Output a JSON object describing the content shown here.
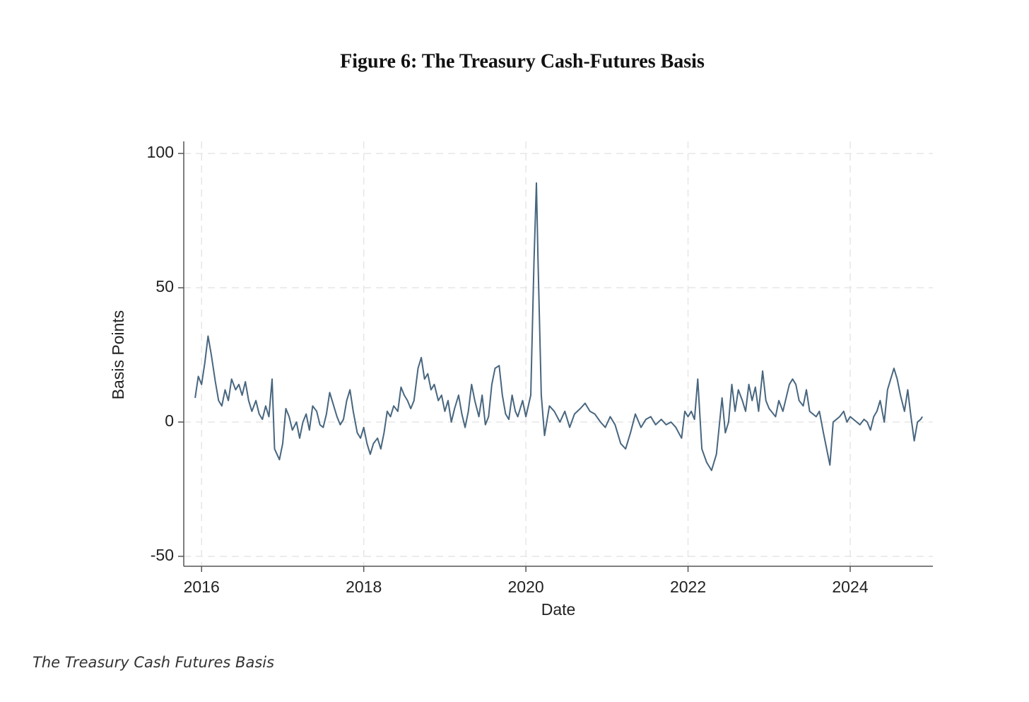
{
  "chart_data": {
    "type": "line",
    "title": "Figure 6: The Treasury Cash-Futures Basis",
    "xlabel": "Date",
    "ylabel": "Basis Points",
    "caption": "The Treasury Cash Futures Basis",
    "color": "#48667f",
    "grid": true,
    "xlim": [
      2015.78,
      2025.02
    ],
    "xticks": [
      2016,
      2018,
      2020,
      2022,
      2024
    ],
    "ylim": [
      -53.7,
      104.5
    ],
    "yticks": [
      -50,
      0,
      50,
      100
    ],
    "x": [
      2015.92,
      2015.96,
      2016.0,
      2016.04,
      2016.08,
      2016.12,
      2016.17,
      2016.21,
      2016.25,
      2016.29,
      2016.33,
      2016.37,
      2016.42,
      2016.46,
      2016.5,
      2016.54,
      2016.58,
      2016.62,
      2016.67,
      2016.71,
      2016.75,
      2016.79,
      2016.83,
      2016.87,
      2016.9,
      2016.96,
      2017.0,
      2017.04,
      2017.08,
      2017.12,
      2017.17,
      2017.21,
      2017.25,
      2017.29,
      2017.33,
      2017.37,
      2017.42,
      2017.46,
      2017.5,
      2017.54,
      2017.58,
      2017.62,
      2017.67,
      2017.71,
      2017.75,
      2017.79,
      2017.83,
      2017.87,
      2017.92,
      2017.96,
      2018.0,
      2018.04,
      2018.08,
      2018.12,
      2018.17,
      2018.21,
      2018.25,
      2018.29,
      2018.33,
      2018.37,
      2018.42,
      2018.46,
      2018.5,
      2018.54,
      2018.58,
      2018.62,
      2018.67,
      2018.71,
      2018.75,
      2018.79,
      2018.83,
      2018.87,
      2018.92,
      2018.96,
      2019.0,
      2019.04,
      2019.08,
      2019.12,
      2019.17,
      2019.21,
      2019.25,
      2019.29,
      2019.33,
      2019.37,
      2019.42,
      2019.46,
      2019.5,
      2019.54,
      2019.58,
      2019.62,
      2019.67,
      2019.71,
      2019.75,
      2019.79,
      2019.83,
      2019.87,
      2019.9,
      2019.96,
      2020.0,
      2020.06,
      2020.1,
      2020.13,
      2020.15,
      2020.19,
      2020.23,
      2020.29,
      2020.35,
      2020.42,
      2020.48,
      2020.54,
      2020.6,
      2020.67,
      2020.73,
      2020.79,
      2020.85,
      2020.92,
      2020.98,
      2021.04,
      2021.1,
      2021.17,
      2021.23,
      2021.29,
      2021.35,
      2021.42,
      2021.48,
      2021.54,
      2021.6,
      2021.67,
      2021.73,
      2021.79,
      2021.85,
      2021.92,
      2021.96,
      2022.0,
      2022.04,
      2022.08,
      2022.12,
      2022.17,
      2022.23,
      2022.29,
      2022.35,
      2022.42,
      2022.46,
      2022.5,
      2022.54,
      2022.58,
      2022.62,
      2022.67,
      2022.71,
      2022.75,
      2022.79,
      2022.83,
      2022.87,
      2022.92,
      2022.96,
      2023.0,
      2023.08,
      2023.12,
      2023.17,
      2023.25,
      2023.29,
      2023.33,
      2023.37,
      2023.42,
      2023.46,
      2023.5,
      2023.58,
      2023.62,
      2023.67,
      2023.71,
      2023.75,
      2023.79,
      2023.83,
      2023.87,
      2023.92,
      2023.96,
      2024.0,
      2024.08,
      2024.12,
      2024.17,
      2024.21,
      2024.25,
      2024.29,
      2024.33,
      2024.37,
      2024.42,
      2024.46,
      2024.5,
      2024.54,
      2024.58,
      2024.62,
      2024.67,
      2024.71,
      2024.75,
      2024.79,
      2024.83,
      2024.87,
      2024.89
    ],
    "values": [
      9,
      17,
      14,
      22,
      32,
      25,
      15,
      8,
      6,
      12,
      8,
      16,
      12,
      14,
      10,
      15,
      8,
      4,
      8,
      3,
      1,
      6,
      2,
      16,
      -10,
      -14,
      -8,
      5,
      2,
      -3,
      0,
      -6,
      0,
      3,
      -3,
      6,
      4,
      -1,
      -2,
      3,
      11,
      7,
      2,
      -1,
      1,
      8,
      12,
      4,
      -4,
      -6,
      -2,
      -8,
      -12,
      -8,
      -6,
      -10,
      -4,
      4,
      2,
      6,
      4,
      13,
      10,
      8,
      5,
      8,
      20,
      24,
      16,
      18,
      12,
      14,
      8,
      10,
      4,
      8,
      0,
      5,
      10,
      3,
      -2,
      4,
      14,
      8,
      2,
      10,
      -1,
      2,
      14,
      20,
      21,
      10,
      3,
      1,
      10,
      4,
      2,
      8,
      2,
      10,
      60,
      89,
      60,
      10,
      -5,
      6,
      4,
      0,
      4,
      -2,
      3,
      5,
      7,
      4,
      3,
      0,
      -2,
      2,
      -1,
      -8,
      -10,
      -4,
      3,
      -2,
      1,
      2,
      -1,
      1,
      -1,
      0,
      -2,
      -6,
      4,
      2,
      4,
      1,
      16,
      -10,
      -15,
      -18,
      -12,
      9,
      -4,
      0,
      14,
      4,
      12,
      8,
      4,
      14,
      8,
      13,
      4,
      19,
      8,
      5,
      2,
      8,
      4,
      14,
      16,
      14,
      8,
      6,
      12,
      4,
      2,
      4,
      -4,
      -10,
      -16,
      0,
      1,
      2,
      4,
      0,
      2,
      0,
      -1,
      1,
      0,
      -3,
      2,
      4,
      8,
      0,
      12,
      16,
      20,
      16,
      10,
      4,
      12,
      2,
      -7,
      0,
      1,
      2
    ]
  }
}
